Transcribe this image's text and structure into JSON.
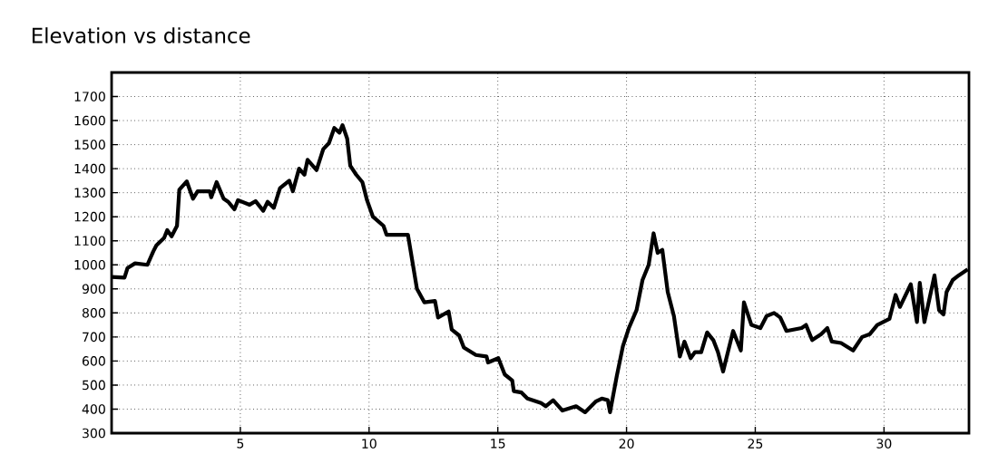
{
  "chart_data": {
    "type": "line",
    "title": "Elevation vs distance",
    "x": [
      0,
      0.5,
      0.62,
      0.91,
      1.39,
      1.62,
      1.74,
      2.04,
      2.16,
      2.33,
      2.54,
      2.63,
      2.92,
      3.16,
      3.34,
      3.81,
      3.87,
      4.08,
      4.35,
      4.53,
      4.77,
      4.91,
      5.36,
      5.59,
      5.89,
      6.06,
      6.3,
      6.54,
      6.9,
      7.04,
      7.28,
      7.49,
      7.61,
      7.96,
      8.22,
      8.44,
      8.65,
      8.85,
      8.97,
      9.15,
      9.27,
      9.5,
      9.74,
      9.92,
      10.15,
      10.56,
      10.68,
      11.51,
      11.86,
      12.15,
      12.56,
      12.68,
      13.09,
      13.21,
      13.5,
      13.68,
      14.15,
      14.56,
      14.62,
      15.02,
      15.27,
      15.56,
      15.62,
      15.92,
      16.15,
      16.68,
      16.86,
      17.15,
      17.51,
      18.04,
      18.39,
      18.8,
      19.04,
      19.27,
      19.36,
      19.62,
      19.86,
      20.09,
      20.39,
      20.62,
      20.86,
      21.05,
      21.21,
      21.39,
      21.6,
      21.84,
      22.07,
      22.25,
      22.49,
      22.66,
      22.9,
      23.13,
      23.37,
      23.55,
      23.75,
      24.14,
      24.44,
      24.56,
      24.85,
      25.2,
      25.44,
      25.73,
      25.97,
      26.21,
      26.8,
      26.97,
      27.21,
      27.56,
      27.8,
      27.97,
      28.33,
      28.8,
      29.15,
      29.45,
      29.74,
      30.21,
      30.45,
      30.62,
      31.04,
      31.28,
      31.39,
      31.57,
      31.96,
      32.14,
      32.31,
      32.43,
      32.67,
      32.9,
      33.25
    ],
    "values": [
      950,
      947,
      987,
      1006,
      1000,
      1056,
      1081,
      1112,
      1144,
      1119,
      1162,
      1312,
      1347,
      1275,
      1306,
      1306,
      1281,
      1344,
      1275,
      1262,
      1231,
      1269,
      1250,
      1265,
      1225,
      1262,
      1237,
      1319,
      1350,
      1306,
      1400,
      1375,
      1437,
      1394,
      1481,
      1506,
      1569,
      1550,
      1581,
      1525,
      1412,
      1375,
      1344,
      1269,
      1200,
      1162,
      1125,
      1125,
      900,
      844,
      850,
      781,
      806,
      731,
      706,
      656,
      625,
      619,
      594,
      612,
      544,
      519,
      475,
      469,
      444,
      425,
      412,
      437,
      394,
      412,
      387,
      431,
      444,
      437,
      387,
      537,
      662,
      737,
      812,
      937,
      1000,
      1131,
      1050,
      1062,
      887,
      787,
      619,
      681,
      612,
      637,
      637,
      719,
      687,
      637,
      556,
      725,
      644,
      844,
      750,
      737,
      787,
      800,
      781,
      725,
      737,
      750,
      687,
      712,
      737,
      681,
      675,
      644,
      700,
      712,
      750,
      775,
      875,
      825,
      919,
      762,
      925,
      762,
      956,
      812,
      794,
      887,
      937,
      956,
      981
    ],
    "color": "#000000",
    "line_style": "solid",
    "grid": true,
    "xlim": [
      0,
      33.3
    ],
    "ylim": [
      300,
      1800
    ],
    "xticks": [
      5,
      10,
      15,
      20,
      25,
      30
    ],
    "yticks": [
      300,
      400,
      500,
      600,
      700,
      800,
      900,
      1000,
      1100,
      1200,
      1300,
      1400,
      1500,
      1600,
      1700
    ]
  }
}
